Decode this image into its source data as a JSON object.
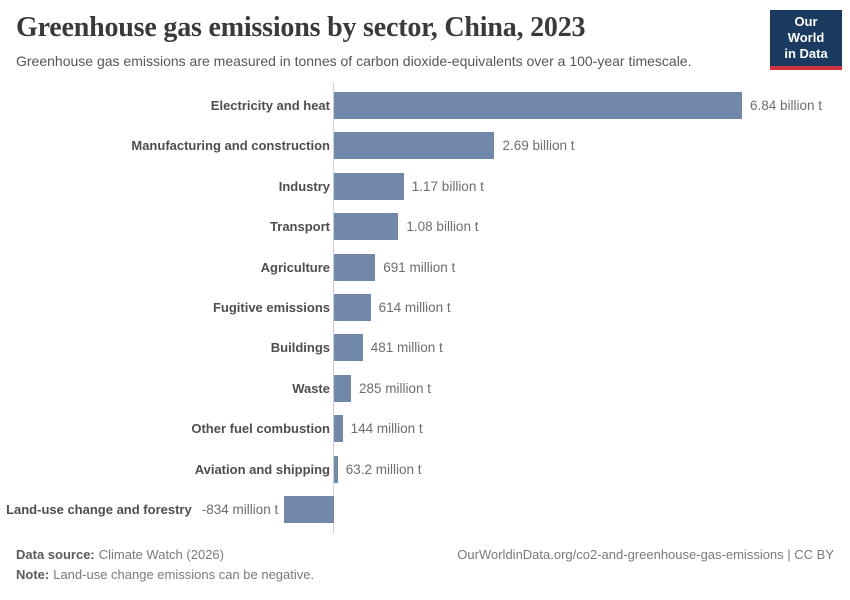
{
  "header": {
    "title": "Greenhouse gas emissions by sector, China, 2023",
    "subtitle": "Greenhouse gas emissions are measured in tonnes of carbon dioxide-equivalents over a 100-year timescale.",
    "logo": {
      "line1": "Our World",
      "line2": "in Data"
    }
  },
  "chart_data": {
    "type": "bar",
    "orientation": "horizontal",
    "title": "Greenhouse gas emissions by sector, China, 2023",
    "unit_suffix": "t",
    "categories": [
      "Electricity and heat",
      "Manufacturing and construction",
      "Industry",
      "Transport",
      "Agriculture",
      "Fugitive emissions",
      "Buildings",
      "Waste",
      "Other fuel combustion",
      "Aviation and shipping",
      "Land-use change and forestry"
    ],
    "values_million_t": [
      6840,
      2690,
      1170,
      1080,
      691,
      614,
      481,
      285,
      144,
      63.2,
      -834
    ],
    "value_labels": [
      "6.84 billion t",
      "2.69 billion t",
      "1.17 billion t",
      "1.08 billion t",
      "691 million t",
      "614 million t",
      "481 million t",
      "285 million t",
      "144 million t",
      "63.2 million t",
      "-834 million t"
    ],
    "xlim_million_t": [
      -900,
      7000
    ],
    "grid": false,
    "legend": "none",
    "zero_axis_line": true
  },
  "colors": {
    "bar": "#7288ab",
    "axis_line": "#cfcfcf",
    "logo_background": "#1a3a60",
    "logo_accent_red": "#cf303e",
    "title_text": "#3a3a3a",
    "subtitle_text": "#565656",
    "category_label": "#4e4e4e",
    "value_label": "#6e6e6e",
    "footer_label": "#5b5b5b",
    "footer_text": "#7a7a7a"
  },
  "footer": {
    "source_label": "Data source:",
    "source_value": "Climate Watch (2026)",
    "note_label": "Note:",
    "note_value": "Land-use change emissions can be negative.",
    "link": "OurWorldinData.org/co2-and-greenhouse-gas-emissions | CC BY"
  }
}
